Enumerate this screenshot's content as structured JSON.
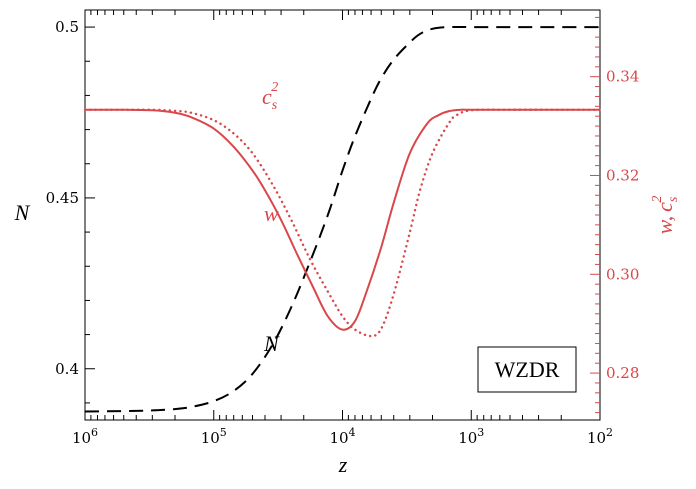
{
  "chart_data": {
    "type": "line",
    "title": "",
    "xlabel": "z",
    "ylabel_left": "N",
    "ylabel_right": "w, c_s^2",
    "x_scale": "log",
    "x_reversed": true,
    "xlim": [
      1000000,
      100
    ],
    "ylim_left": [
      0.385,
      0.505
    ],
    "ylim_right": [
      0.2705,
      0.3535
    ],
    "grid": false,
    "legend_box": "WZDR",
    "x_ticks": [
      {
        "value": 1000000,
        "base": "10",
        "exp": "6"
      },
      {
        "value": 100000,
        "base": "10",
        "exp": "5"
      },
      {
        "value": 10000,
        "base": "10",
        "exp": "4"
      },
      {
        "value": 1000,
        "base": "10",
        "exp": "3"
      },
      {
        "value": 100,
        "base": "10",
        "exp": "2"
      }
    ],
    "y_left_ticks": [
      {
        "value": 0.4,
        "label": "0.4"
      },
      {
        "value": 0.45,
        "label": "0.45"
      },
      {
        "value": 0.5,
        "label": "0.5"
      }
    ],
    "y_right_ticks": [
      {
        "value": 0.28,
        "label": "0.28"
      },
      {
        "value": 0.3,
        "label": "0.30"
      },
      {
        "value": 0.32,
        "label": "0.32"
      },
      {
        "value": 0.34,
        "label": "0.34"
      }
    ],
    "curve_labels": {
      "N": "N",
      "w": "w",
      "cs2_base": "c",
      "cs2_sub": "s",
      "cs2_sup": "2"
    },
    "right_axis_label_parts": {
      "w": "w,",
      "c": "c",
      "sub": "s",
      "sup": "2"
    },
    "series": [
      {
        "name": "N",
        "axis": "left",
        "style": "dashed",
        "color": "#000000",
        "x": [
          1000000,
          500000,
          300000,
          200000,
          150000,
          100000,
          70000,
          50000,
          35000,
          25000,
          18000,
          13000,
          10000,
          8000,
          6000,
          5000,
          4000,
          3000,
          2500,
          2000,
          1500,
          1000,
          500,
          200,
          100
        ],
        "y": [
          0.3875,
          0.3876,
          0.3878,
          0.3882,
          0.3888,
          0.3905,
          0.3935,
          0.3985,
          0.407,
          0.418,
          0.431,
          0.445,
          0.458,
          0.468,
          0.479,
          0.485,
          0.4905,
          0.4955,
          0.498,
          0.4995,
          0.5,
          0.5,
          0.5,
          0.5,
          0.5
        ]
      },
      {
        "name": "w",
        "axis": "right",
        "style": "solid",
        "color": "#d9474a",
        "x": [
          1000000,
          500000,
          300000,
          200000,
          150000,
          100000,
          70000,
          50000,
          40000,
          30000,
          22000,
          17000,
          13000,
          10000,
          8000,
          6500,
          5000,
          4000,
          3000,
          2200,
          1800,
          1500,
          1200,
          1000,
          500,
          200,
          100
        ],
        "y": [
          0.3333,
          0.3333,
          0.3332,
          0.3327,
          0.3318,
          0.3295,
          0.3258,
          0.321,
          0.317,
          0.311,
          0.3035,
          0.2975,
          0.2915,
          0.2888,
          0.2905,
          0.2965,
          0.3055,
          0.3145,
          0.3245,
          0.3305,
          0.3322,
          0.333,
          0.3333,
          0.3333,
          0.3333,
          0.3333,
          0.3333
        ]
      },
      {
        "name": "c_s^2",
        "axis": "right",
        "style": "dotted",
        "color": "#d9474a",
        "x": [
          1000000,
          500000,
          300000,
          200000,
          150000,
          100000,
          70000,
          50000,
          35000,
          25000,
          18000,
          13000,
          10000,
          8000,
          6000,
          5000,
          4000,
          3000,
          2500,
          2000,
          1500,
          1300,
          1000,
          500,
          200,
          100
        ],
        "y": [
          0.3333,
          0.3333,
          0.3333,
          0.3331,
          0.3327,
          0.3312,
          0.3285,
          0.3245,
          0.3182,
          0.311,
          0.3032,
          0.2965,
          0.2915,
          0.2888,
          0.2875,
          0.289,
          0.296,
          0.3085,
          0.317,
          0.3245,
          0.3305,
          0.3322,
          0.3332,
          0.3333,
          0.3333,
          0.3333
        ]
      }
    ]
  }
}
